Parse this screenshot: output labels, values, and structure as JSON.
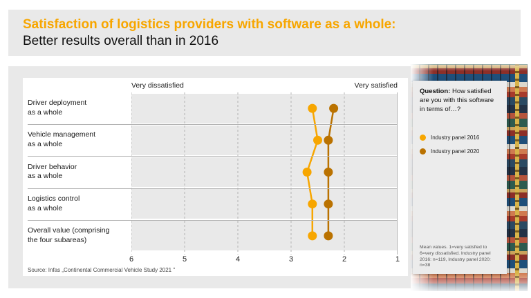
{
  "header": {
    "title_line1": "Satisfaction of logistics providers with software as a whole:",
    "title_line2": "Better results overall than in 2016"
  },
  "chart_data": {
    "type": "scatter",
    "orientation": "horizontal-dot-plot",
    "axis_top_left_label": "Very dissatisfied",
    "axis_top_right_label": "Very satisfied",
    "x_ticks": [
      "6",
      "5",
      "4",
      "3",
      "2",
      "1"
    ],
    "xlim": [
      6,
      1
    ],
    "grid": "dashed-vertical",
    "categories": [
      "Driver deployment\nas a whole",
      "Vehicle management\nas a whole",
      "Driver behavior\nas a whole",
      "Logistics control\nas a whole",
      "Overall value (comprising\nthe four subareas)"
    ],
    "series": [
      {
        "name": "Industry panel 2016",
        "color": "#F7A600",
        "values": [
          2.6,
          2.5,
          2.7,
          2.6,
          2.6
        ]
      },
      {
        "name": "Industry panel 2020",
        "color": "#BA7200",
        "values": [
          2.2,
          2.3,
          2.3,
          2.3,
          2.3
        ]
      }
    ],
    "source": "Source: Infas „Continental Commercial Vehicle Study 2021 \""
  },
  "side_panel": {
    "question_label": "Question:",
    "question_text": " How satisfied are you with this software in terms of…?",
    "legend": [
      {
        "label": "Industry panel 2016"
      },
      {
        "label": "Industry panel 2020"
      }
    ],
    "footnote": "Mean values. 1=very satisfied to 6=very dissatisfied. Industry panel 2016: n=119, Industry panel 2020: n=38"
  }
}
